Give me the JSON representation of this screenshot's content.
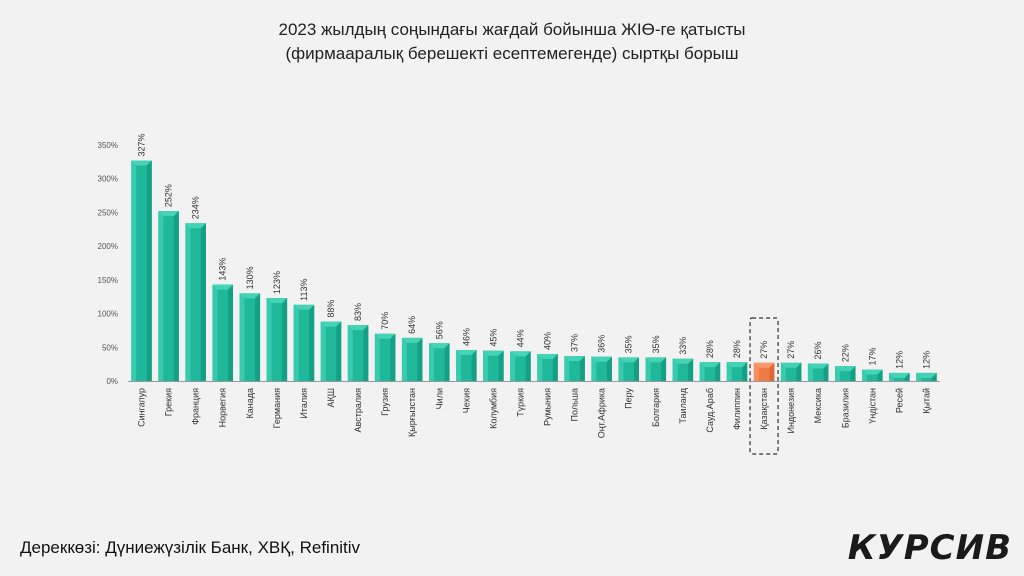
{
  "title": {
    "line1": "2023 жылдың соңындағы жағдай бойынша ЖІӨ-ге қатысты",
    "line2": "(фирмааралық берешекті есептемегенде) сыртқы борыш"
  },
  "source": "Дереккөзі: Дүниежүзілік Банк, ХВҚ, Refinitiv",
  "logo": "КУРСИВ",
  "colors": {
    "bar": "#1fb89b",
    "bar_light": "#45d3b6",
    "bar_dark": "#0f8f78",
    "highlight": "#f07b45",
    "highlight_light": "#f79a6c",
    "highlight_dark": "#d55a25",
    "axis_text": "#555555"
  },
  "chart_data": {
    "type": "bar",
    "categories": [
      "Сингапур",
      "Грекия",
      "Франция",
      "Норвегия",
      "Канада",
      "Германия",
      "Италия",
      "АҚШ",
      "Австралия",
      "Грузия",
      "Қырғызстан",
      "Чили",
      "Чехия",
      "Колумбия",
      "Түркия",
      "Румыния",
      "Польша",
      "Оңт.Африка",
      "Перу",
      "Болгария",
      "Таиланд",
      "Сауд.Араб",
      "Филиппин",
      "Қазақстан",
      "Индонезия",
      "Мексика",
      "Бразилия",
      "Үндістан",
      "Ресей",
      "Қытай"
    ],
    "values": [
      327,
      252,
      234,
      143,
      130,
      123,
      113,
      88,
      83,
      70,
      64,
      56,
      46,
      45,
      44,
      40,
      37,
      36,
      35,
      35,
      33,
      28,
      28,
      27,
      27,
      26,
      22,
      17,
      12,
      12
    ],
    "data_labels": [
      "327%",
      "252%",
      "234%",
      "143%",
      "130%",
      "123%",
      "113%",
      "88%",
      "83%",
      "70%",
      "64%",
      "56%",
      "46%",
      "45%",
      "44%",
      "40%",
      "37%",
      "36%",
      "35%",
      "35%",
      "33%",
      "28%",
      "28%",
      "27%",
      "27%",
      "26%",
      "22%",
      "17%",
      "12%",
      "12%"
    ],
    "highlight_category": "Қазақстан",
    "y_ticks": [
      "0%",
      "50%",
      "100%",
      "150%",
      "200%",
      "250%",
      "300%",
      "350%"
    ],
    "ylim": [
      0,
      350
    ],
    "grid": false,
    "legend": "none"
  }
}
